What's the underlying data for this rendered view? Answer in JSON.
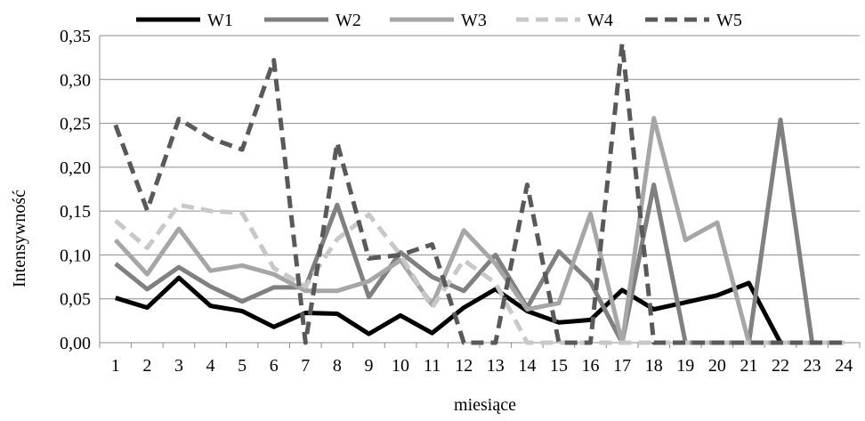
{
  "chart_data": {
    "type": "line",
    "xlabel": "miesiące",
    "ylabel": "Intensywność",
    "categories": [
      "1",
      "2",
      "3",
      "4",
      "5",
      "6",
      "7",
      "8",
      "9",
      "10",
      "11",
      "12",
      "13",
      "14",
      "15",
      "16",
      "17",
      "18",
      "19",
      "20",
      "21",
      "22",
      "23",
      "24"
    ],
    "ylim": [
      0,
      0.35
    ],
    "ytick_values": [
      0,
      0.05,
      0.1,
      0.15,
      0.2,
      0.25,
      0.3,
      0.35
    ],
    "ytick_labels": [
      "0,00",
      "0,05",
      "0,10",
      "0,15",
      "0,20",
      "0,25",
      "0,30",
      "0,35"
    ],
    "grid": "horizontal",
    "legend_position": "top",
    "series": [
      {
        "name": "W1",
        "color": "#000000",
        "dash": "solid",
        "values": [
          0.051,
          0.04,
          0.074,
          0.042,
          0.036,
          0.018,
          0.034,
          0.033,
          0.01,
          0.031,
          0.011,
          0.04,
          0.061,
          0.036,
          0.023,
          0.026,
          0.06,
          0.038,
          0.046,
          0.054,
          0.068,
          0.0,
          0.0,
          0.0
        ]
      },
      {
        "name": "W2",
        "color": "#808080",
        "dash": "solid",
        "values": [
          0.09,
          0.061,
          0.086,
          0.064,
          0.047,
          0.063,
          0.063,
          0.157,
          0.052,
          0.103,
          0.075,
          0.059,
          0.1,
          0.04,
          0.104,
          0.069,
          0.0,
          0.18,
          0.0,
          0.0,
          0.0,
          0.254,
          0.0,
          0.0
        ]
      },
      {
        "name": "W3",
        "color": "#a6a6a6",
        "dash": "solid",
        "values": [
          0.117,
          0.078,
          0.13,
          0.082,
          0.088,
          0.078,
          0.059,
          0.059,
          0.07,
          0.094,
          0.043,
          0.128,
          0.09,
          0.038,
          0.045,
          0.147,
          0.0,
          0.256,
          0.117,
          0.137,
          0.0,
          0.0,
          0.0,
          0.0
        ]
      },
      {
        "name": "W4",
        "color": "#c8c8c8",
        "dash": "dash",
        "values": [
          0.139,
          0.108,
          0.157,
          0.15,
          0.148,
          0.085,
          0.064,
          0.118,
          0.146,
          0.1,
          0.04,
          0.094,
          0.068,
          0.0,
          0.0,
          0.0,
          0.0,
          0.0,
          0.0,
          0.0,
          0.0,
          0.0,
          0.0,
          0.0
        ]
      },
      {
        "name": "W5",
        "color": "#595959",
        "dash": "dash",
        "values": [
          0.248,
          0.151,
          0.255,
          0.233,
          0.22,
          0.322,
          0.0,
          0.228,
          0.096,
          0.1,
          0.112,
          0.0,
          0.0,
          0.18,
          0.0,
          0.0,
          0.341,
          0.0,
          0.0,
          0.0,
          0.0,
          0.0,
          0.0,
          0.0
        ]
      }
    ]
  }
}
